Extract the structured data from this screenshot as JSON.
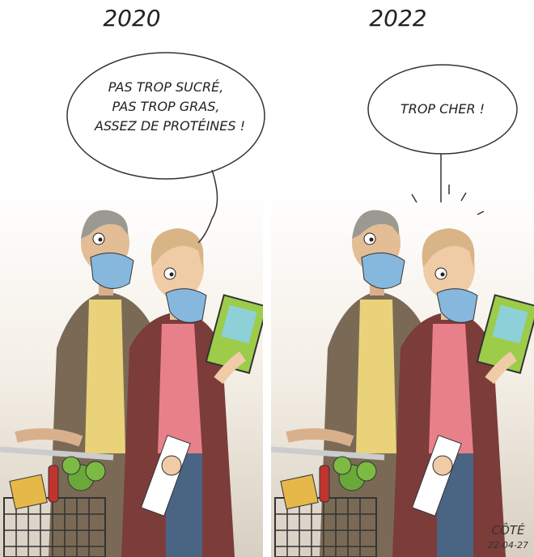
{
  "panels": [
    {
      "year": "2020",
      "bubble": [
        "PAS TROP SUCRÉ,",
        "PAS TROP GRAS,",
        "ASSEZ DE PROTÉINES !"
      ]
    },
    {
      "year": "2022",
      "bubble": [
        "TROP CHER !"
      ]
    }
  ],
  "signature": {
    "name": "CÔTÉ",
    "date": "22-04-27"
  }
}
